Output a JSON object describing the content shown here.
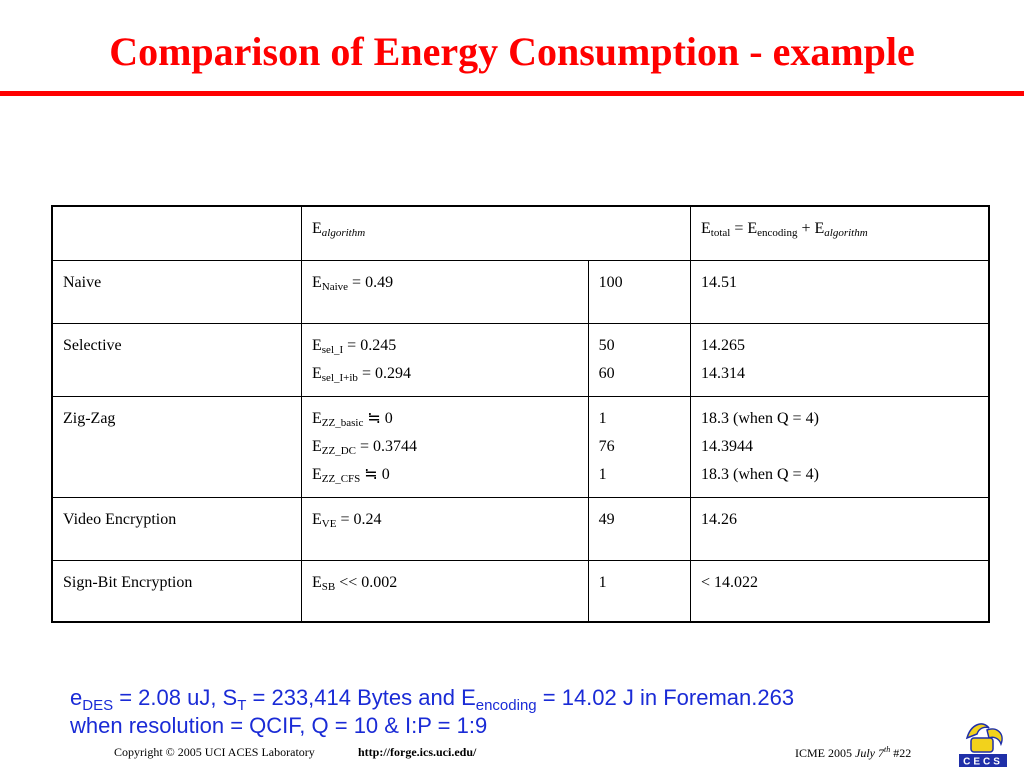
{
  "title": "Comparison of Energy Consumption - example",
  "table": {
    "header": {
      "blank": "",
      "ealg_main": "E",
      "ealg_sub": "algorithm",
      "etot_e1": "E",
      "etot_sub1": "total",
      "etot_eq": " = E",
      "etot_sub2": "encoding",
      "etot_plus": " + E",
      "etot_sub3": "algorithm"
    },
    "rows": [
      {
        "name": "Naive",
        "e": [
          {
            "sub": "Naive",
            "rest": " = 0.49"
          }
        ],
        "count": [
          "100"
        ],
        "total": [
          "14.51"
        ]
      },
      {
        "name": "Selective",
        "e": [
          {
            "sub": "sel_I",
            "rest": " = 0.245"
          },
          {
            "sub": "sel_I+ib",
            "rest": " = 0.294"
          }
        ],
        "count": [
          "50",
          "60"
        ],
        "total": [
          "14.265",
          "14.314"
        ]
      },
      {
        "name": "Zig-Zag",
        "e": [
          {
            "sub": "ZZ_basic",
            "rest": " ≒ 0"
          },
          {
            "sub": "ZZ_DC",
            "rest": " = 0.3744"
          },
          {
            "sub": "ZZ_CFS",
            "rest": " ≒ 0"
          }
        ],
        "count": [
          "1",
          "76",
          "1"
        ],
        "total": [
          "18.3 (when Q = 4)",
          "14.3944",
          "18.3 (when Q = 4)"
        ]
      },
      {
        "name": "Video Encryption",
        "e": [
          {
            "sub": "VE",
            "rest": " = 0.24"
          }
        ],
        "count": [
          "49"
        ],
        "total": [
          "14.26"
        ]
      },
      {
        "name": "Sign-Bit Encryption",
        "e": [
          {
            "sub": "SB",
            "rest": " << 0.002"
          }
        ],
        "count": [
          "1"
        ],
        "total": [
          "< 14.022"
        ]
      }
    ]
  },
  "note": {
    "p1": "e",
    "p1_sub": "DES",
    "p2": " = 2.08 uJ, S",
    "p2_sub": "T",
    "p3": " = 233,414 Bytes and E",
    "p3_sub": "encoding",
    "p4": " = 14.02 J in Foreman.263",
    "line2": "when resolution = QCIF, Q = 10 & I:P = 1:9"
  },
  "footer": {
    "copyright": "Copyright © 2005  UCI ACES Laboratory",
    "link": "http://forge.ics.uci.edu/",
    "conf": "ICME 2005  ",
    "date_main": "July 7",
    "date_sup": "th",
    "page": "  #22"
  },
  "logo": {
    "label": "CECS",
    "colors": {
      "blue": "#1f2fa8",
      "yellow": "#f2d21c"
    }
  }
}
